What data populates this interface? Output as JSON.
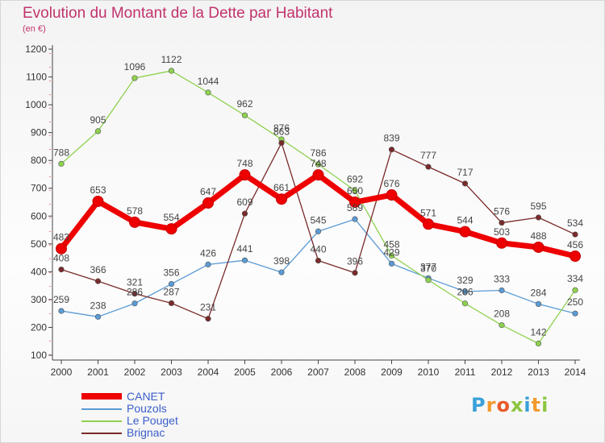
{
  "title": "Evolution du Montant de la Dette par Habitant",
  "unit": "(en €)",
  "logo": {
    "letters": [
      "P",
      "r",
      "o",
      "x",
      "i",
      "t",
      "i"
    ],
    "colors": [
      "#3aa0d8",
      "#f29a2e",
      "#e85a2a",
      "#8cc63f",
      "#3aa0d8",
      "#f29a2e",
      "#8cc63f"
    ]
  },
  "chart_data": {
    "type": "line",
    "x": [
      "2000",
      "2001",
      "2002",
      "2003",
      "2004",
      "2005",
      "2006",
      "2007",
      "2008",
      "2009",
      "2010",
      "2011",
      "2012",
      "2013",
      "2014"
    ],
    "ylim": [
      100,
      1200
    ],
    "yticks": [
      100,
      200,
      300,
      400,
      500,
      600,
      700,
      800,
      900,
      1000,
      1100,
      1200
    ],
    "grid": false,
    "legend_position": "bottom-left",
    "series": [
      {
        "name": "CANET",
        "color": "#ee0000",
        "values": [
          483,
          653,
          578,
          554,
          647,
          748,
          661,
          748,
          650,
          676,
          571,
          544,
          503,
          488,
          456
        ]
      },
      {
        "name": "Pouzols",
        "color": "#5b9bd5",
        "values": [
          259,
          238,
          286,
          356,
          426,
          441,
          398,
          545,
          589,
          429,
          377,
          329,
          333,
          284,
          250
        ]
      },
      {
        "name": "Le Pouget",
        "color": "#8fd14f",
        "values": [
          788,
          905,
          1096,
          1122,
          1044,
          962,
          876,
          786,
          692,
          458,
          370,
          286,
          208,
          142,
          334
        ]
      },
      {
        "name": "Brignac",
        "color": "#7a2a2a",
        "values": [
          408,
          366,
          321,
          287,
          231,
          609,
          863,
          440,
          396,
          839,
          777,
          717,
          576,
          595,
          534
        ]
      }
    ]
  }
}
